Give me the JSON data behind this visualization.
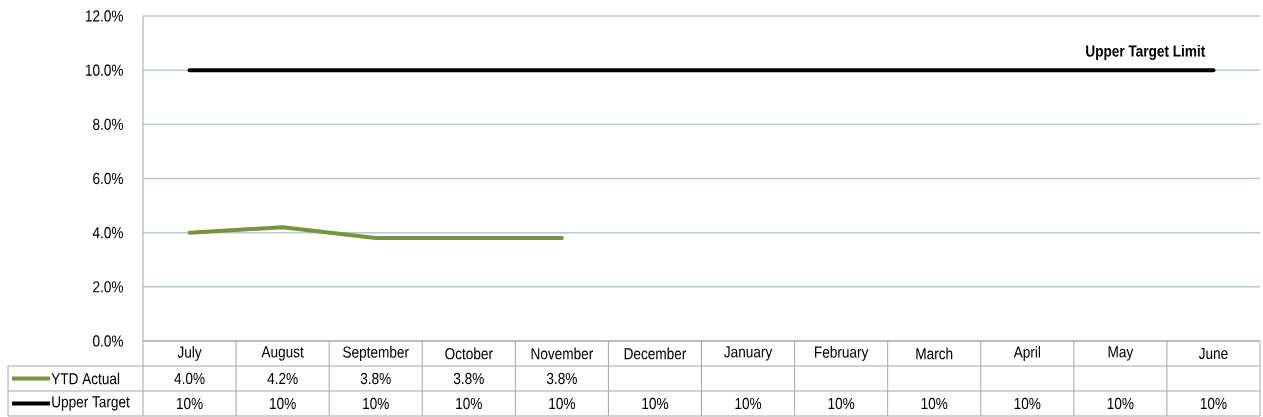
{
  "chart_data": {
    "type": "line",
    "categories": [
      "July",
      "August",
      "September",
      "October",
      "November",
      "December",
      "January",
      "February",
      "March",
      "April",
      "May",
      "June"
    ],
    "series": [
      {
        "name": "YTD Actual",
        "color": "#77933c",
        "values": [
          4.0,
          4.2,
          3.8,
          3.8,
          3.8,
          null,
          null,
          null,
          null,
          null,
          null,
          null
        ],
        "value_labels": [
          "4.0%",
          "4.2%",
          "3.8%",
          "3.8%",
          "3.8%",
          null,
          null,
          null,
          null,
          null,
          null,
          null
        ]
      },
      {
        "name": "Upper Target",
        "color": "#000000",
        "values": [
          10,
          10,
          10,
          10,
          10,
          10,
          10,
          10,
          10,
          10,
          10,
          10
        ],
        "value_labels": [
          "10%",
          "10%",
          "10%",
          "10%",
          "10%",
          "10%",
          "10%",
          "10%",
          "10%",
          "10%",
          "10%",
          "10%"
        ]
      }
    ],
    "ylim": [
      0,
      12
    ],
    "yticks": [
      {
        "value": 0,
        "label": "0.0%"
      },
      {
        "value": 2,
        "label": "2.0%"
      },
      {
        "value": 4,
        "label": "4.0%"
      },
      {
        "value": 6,
        "label": "6.0%"
      },
      {
        "value": 8,
        "label": "8.0%"
      },
      {
        "value": 10,
        "label": "10.0%"
      },
      {
        "value": 12,
        "label": "12.0%"
      }
    ],
    "grid": "y",
    "legend": "bottom",
    "marker": "none",
    "annotations": [
      {
        "text": "Upper Target Limit",
        "x": "June",
        "y": 10
      }
    ]
  }
}
